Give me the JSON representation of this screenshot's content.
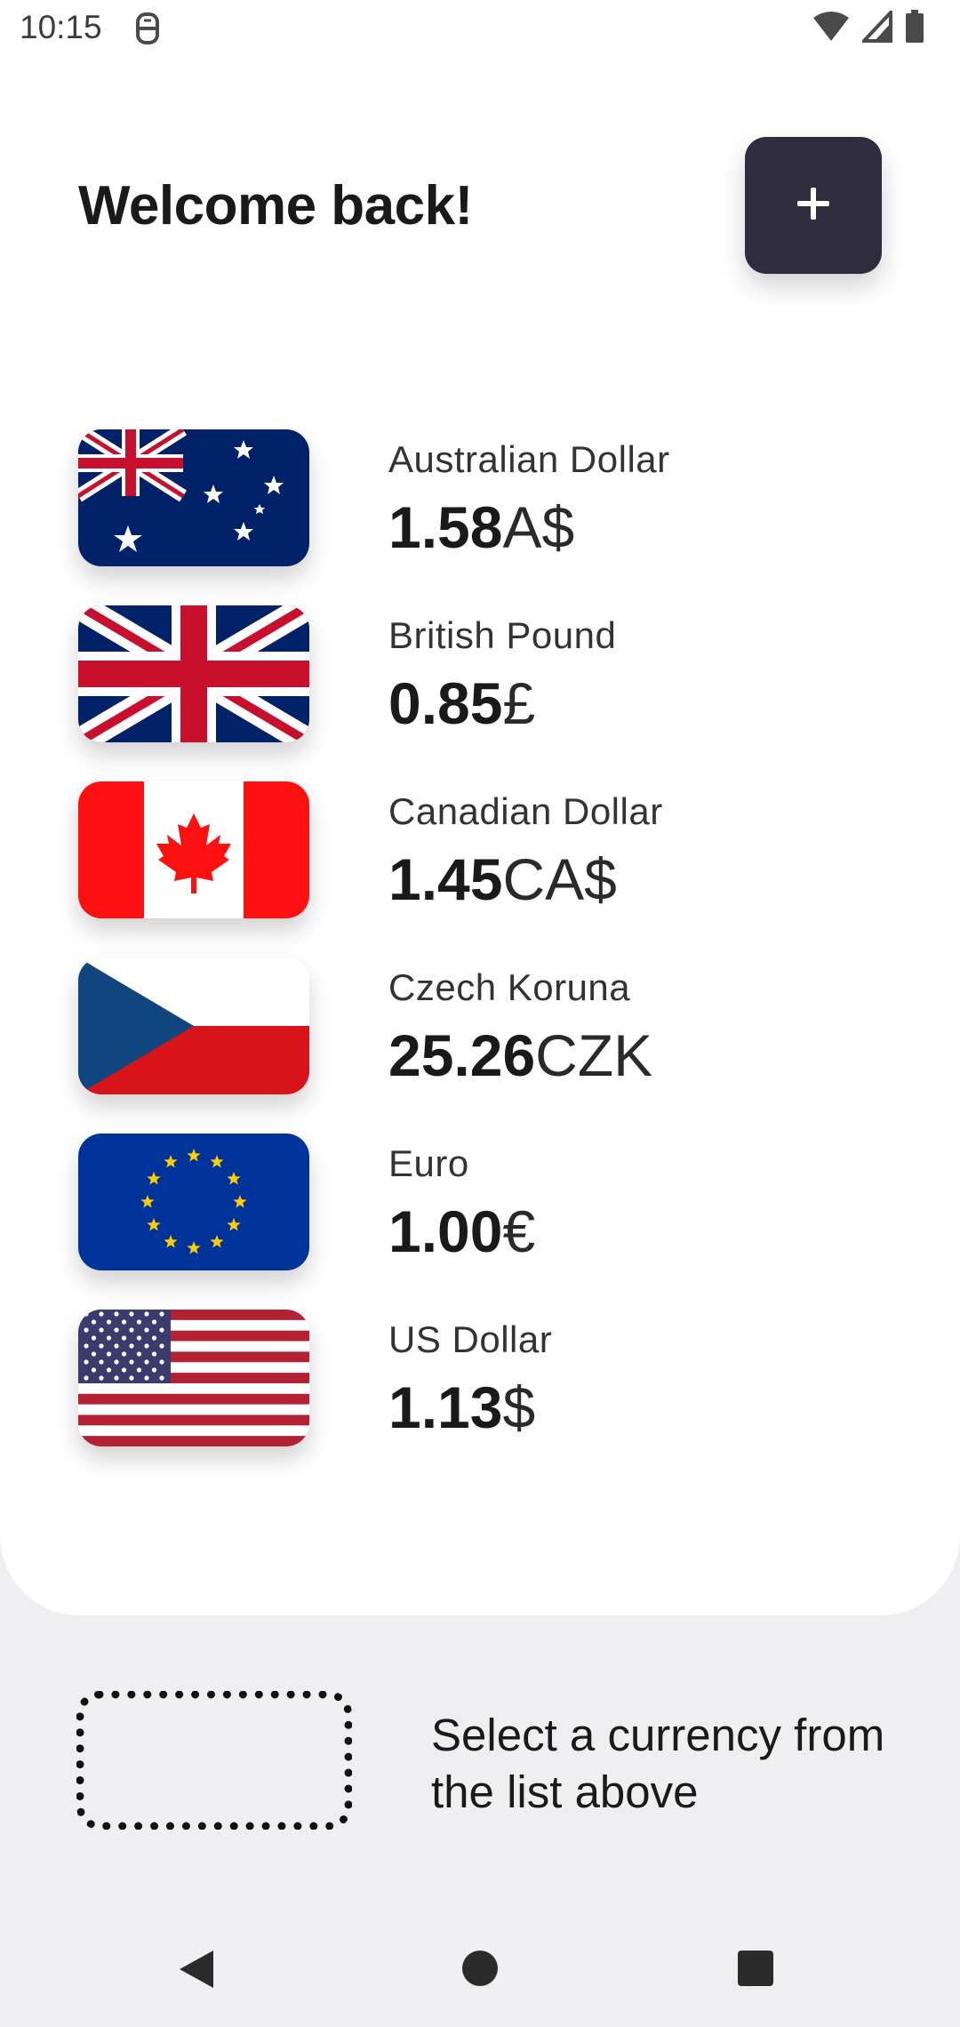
{
  "status_bar": {
    "time": "10:15"
  },
  "header": {
    "title": "Welcome back!",
    "add_button_label": "+"
  },
  "currencies": [
    {
      "name": "Australian Dollar",
      "value": "1.58",
      "symbol": "A$",
      "flag_icon": "australia-flag-icon"
    },
    {
      "name": "British Pound",
      "value": "0.85",
      "symbol": "£",
      "flag_icon": "uk-flag-icon"
    },
    {
      "name": "Canadian Dollar",
      "value": "1.45",
      "symbol": "CA$",
      "flag_icon": "canada-flag-icon"
    },
    {
      "name": "Czech Koruna",
      "value": "25.26",
      "symbol": "CZK",
      "flag_icon": "czech-flag-icon"
    },
    {
      "name": "Euro",
      "value": "1.00",
      "symbol": "€",
      "flag_icon": "eu-flag-icon"
    },
    {
      "name": "US Dollar",
      "value": "1.13",
      "symbol": "$",
      "flag_icon": "us-flag-icon"
    }
  ],
  "selection": {
    "hint": "Select a currency from the list above"
  },
  "colors": {
    "add_button_bg": "#2f2d3d",
    "page_bg": "#efeff1",
    "card_bg": "#ffffff"
  }
}
